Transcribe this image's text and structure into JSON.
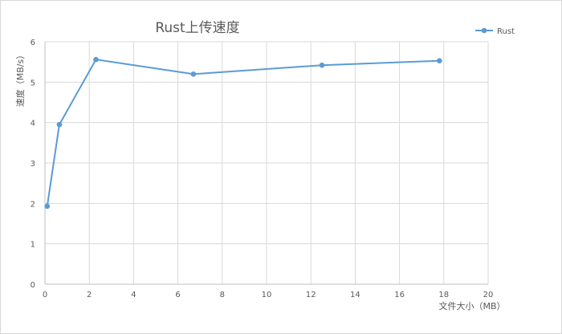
{
  "chart_data": {
    "type": "scatter",
    "title": "Rust上传速度",
    "xlabel": "文件大小（MB）",
    "ylabel": "速度（MB/s）",
    "xlim": [
      0,
      20
    ],
    "ylim": [
      0,
      6
    ],
    "xticks": [
      "0",
      "2",
      "4",
      "6",
      "8",
      "10",
      "12",
      "14",
      "16",
      "18",
      "20"
    ],
    "yticks": [
      "0",
      "1",
      "2",
      "3",
      "4",
      "5",
      "6"
    ],
    "grid": true,
    "legend_position": "top-right",
    "series": [
      {
        "name": "Rust",
        "color": "#5b9bd5",
        "x": [
          0.1,
          0.65,
          2.3,
          6.7,
          12.5,
          17.8
        ],
        "y": [
          1.93,
          3.95,
          5.56,
          5.2,
          5.42,
          5.53
        ]
      }
    ]
  }
}
